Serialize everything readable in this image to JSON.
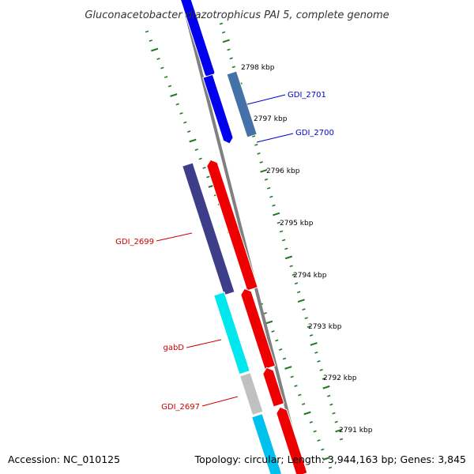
{
  "title": "Gluconacetobacter diazotrophicus PAI 5, complete genome",
  "footer": {
    "accession": "Accession: NC_010125",
    "topology": "Topology: circular; Length: 3,944,163 bp; Genes: 3,845"
  },
  "colors": {
    "forward_strand": "#0000ee",
    "forward_dark": "#4472a8",
    "reverse_strand": "#ee0000",
    "reverse_dark": "#3d3d8a",
    "cyan_gene": "#00e8ee",
    "skyblue_gene": "#00c0ee",
    "grey_gene": "#c0c0c0",
    "backbone": "#808080",
    "tick": "#1e7a1e",
    "forward_label": "#0000cc",
    "reverse_label": "#cc0000"
  },
  "ticks": [
    {
      "label": "2798 kbp"
    },
    {
      "label": "2797 kbp"
    },
    {
      "label": "2796 kbp"
    },
    {
      "label": "2795 kbp"
    },
    {
      "label": "2794 kbp"
    },
    {
      "label": "2793 kbp"
    },
    {
      "label": "2792 kbp"
    },
    {
      "label": "2791 kbp"
    }
  ],
  "genes": [
    {
      "label": "",
      "strand": "forward",
      "color": "#0000ee"
    },
    {
      "label": "GDI_2701",
      "strand": "forward",
      "color": "#0000ee"
    },
    {
      "label": "GDI_2700",
      "strand": "forward",
      "color": "#4472a8"
    },
    {
      "label": "GDI_2699",
      "strand": "reverse",
      "color": "#3d3d8a"
    },
    {
      "label": "",
      "strand": "reverse",
      "color": "#ee0000"
    },
    {
      "label": "gabD",
      "strand": "reverse",
      "color": "#00e8ee"
    },
    {
      "label": "",
      "strand": "reverse",
      "color": "#ee0000"
    },
    {
      "label": "GDI_2697",
      "strand": "reverse",
      "color": "#c0c0c0"
    },
    {
      "label": "",
      "strand": "reverse",
      "color": "#ee0000"
    },
    {
      "label": "",
      "strand": "reverse",
      "color": "#00c0ee"
    }
  ]
}
